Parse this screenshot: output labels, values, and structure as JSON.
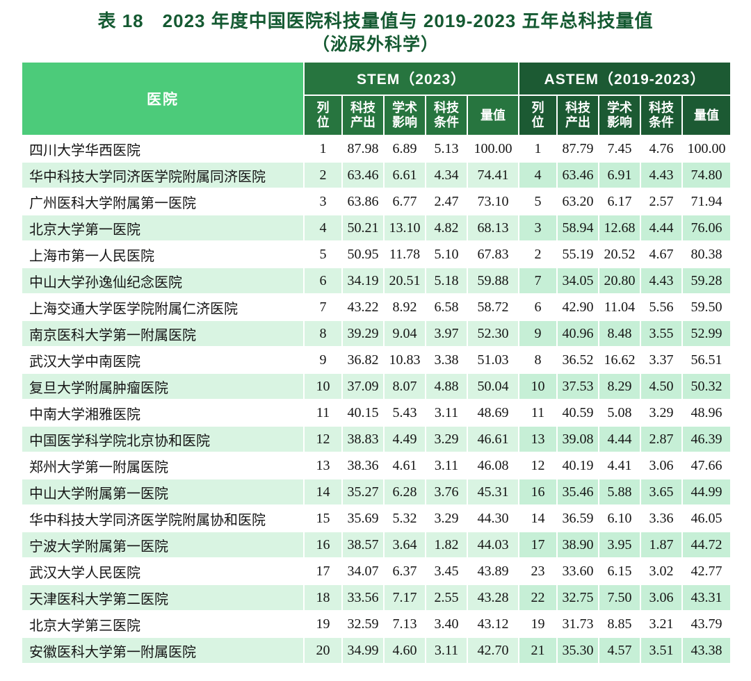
{
  "title": {
    "line1": "表 18　2023 年度中国医院科技量值与 2019-2023 五年总科技量值",
    "line2": "（泌尿外科学）"
  },
  "colors": {
    "title_text": "#155a32",
    "hospital_header_bg": "#4ccb7a",
    "stem_header_bg": "#27753f",
    "astem_header_bg": "#1c5a33",
    "row_stripe_light": "#d9f4e2",
    "row_stripe_dark": "#c6efd6",
    "header_text": "#ffffff",
    "body_text": "#151515"
  },
  "table": {
    "hospital_header": "医院",
    "groups": [
      {
        "label": "STEM（2023）",
        "columns": [
          "列位",
          "科技产出",
          "学术影响",
          "科技条件",
          "量值"
        ]
      },
      {
        "label": "ASTEM（2019-2023）",
        "columns": [
          "列位",
          "科技产出",
          "学术影响",
          "科技条件",
          "量值"
        ]
      }
    ],
    "rows": [
      {
        "hospital": "四川大学华西医院",
        "stem": [
          "1",
          "87.98",
          "6.89",
          "5.13",
          "100.00"
        ],
        "astem": [
          "1",
          "87.79",
          "7.45",
          "4.76",
          "100.00"
        ]
      },
      {
        "hospital": "华中科技大学同济医学院附属同济医院",
        "stem": [
          "2",
          "63.46",
          "6.61",
          "4.34",
          "74.41"
        ],
        "astem": [
          "4",
          "63.46",
          "6.91",
          "4.43",
          "74.80"
        ]
      },
      {
        "hospital": "广州医科大学附属第一医院",
        "stem": [
          "3",
          "63.86",
          "6.77",
          "2.47",
          "73.10"
        ],
        "astem": [
          "5",
          "63.20",
          "6.17",
          "2.57",
          "71.94"
        ]
      },
      {
        "hospital": "北京大学第一医院",
        "stem": [
          "4",
          "50.21",
          "13.10",
          "4.82",
          "68.13"
        ],
        "astem": [
          "3",
          "58.94",
          "12.68",
          "4.44",
          "76.06"
        ]
      },
      {
        "hospital": "上海市第一人民医院",
        "stem": [
          "5",
          "50.95",
          "11.78",
          "5.10",
          "67.83"
        ],
        "astem": [
          "2",
          "55.19",
          "20.52",
          "4.67",
          "80.38"
        ]
      },
      {
        "hospital": "中山大学孙逸仙纪念医院",
        "stem": [
          "6",
          "34.19",
          "20.51",
          "5.18",
          "59.88"
        ],
        "astem": [
          "7",
          "34.05",
          "20.80",
          "4.43",
          "59.28"
        ]
      },
      {
        "hospital": "上海交通大学医学院附属仁济医院",
        "stem": [
          "7",
          "43.22",
          "8.92",
          "6.58",
          "58.72"
        ],
        "astem": [
          "6",
          "42.90",
          "11.04",
          "5.56",
          "59.50"
        ]
      },
      {
        "hospital": "南京医科大学第一附属医院",
        "stem": [
          "8",
          "39.29",
          "9.04",
          "3.97",
          "52.30"
        ],
        "astem": [
          "9",
          "40.96",
          "8.48",
          "3.55",
          "52.99"
        ]
      },
      {
        "hospital": "武汉大学中南医院",
        "stem": [
          "9",
          "36.82",
          "10.83",
          "3.38",
          "51.03"
        ],
        "astem": [
          "8",
          "36.52",
          "16.62",
          "3.37",
          "56.51"
        ]
      },
      {
        "hospital": "复旦大学附属肿瘤医院",
        "stem": [
          "10",
          "37.09",
          "8.07",
          "4.88",
          "50.04"
        ],
        "astem": [
          "10",
          "37.53",
          "8.29",
          "4.50",
          "50.32"
        ]
      },
      {
        "hospital": "中南大学湘雅医院",
        "stem": [
          "11",
          "40.15",
          "5.43",
          "3.11",
          "48.69"
        ],
        "astem": [
          "11",
          "40.59",
          "5.08",
          "3.29",
          "48.96"
        ]
      },
      {
        "hospital": "中国医学科学院北京协和医院",
        "stem": [
          "12",
          "38.83",
          "4.49",
          "3.29",
          "46.61"
        ],
        "astem": [
          "13",
          "39.08",
          "4.44",
          "2.87",
          "46.39"
        ]
      },
      {
        "hospital": "郑州大学第一附属医院",
        "stem": [
          "13",
          "38.36",
          "4.61",
          "3.11",
          "46.08"
        ],
        "astem": [
          "12",
          "40.19",
          "4.41",
          "3.06",
          "47.66"
        ]
      },
      {
        "hospital": "中山大学附属第一医院",
        "stem": [
          "14",
          "35.27",
          "6.28",
          "3.76",
          "45.31"
        ],
        "astem": [
          "16",
          "35.46",
          "5.88",
          "3.65",
          "44.99"
        ]
      },
      {
        "hospital": "华中科技大学同济医学院附属协和医院",
        "stem": [
          "15",
          "35.69",
          "5.32",
          "3.29",
          "44.30"
        ],
        "astem": [
          "14",
          "36.59",
          "6.10",
          "3.36",
          "46.05"
        ]
      },
      {
        "hospital": "宁波大学附属第一医院",
        "stem": [
          "16",
          "38.57",
          "3.64",
          "1.82",
          "44.03"
        ],
        "astem": [
          "17",
          "38.90",
          "3.95",
          "1.87",
          "44.72"
        ]
      },
      {
        "hospital": "武汉大学人民医院",
        "stem": [
          "17",
          "34.07",
          "6.37",
          "3.45",
          "43.89"
        ],
        "astem": [
          "23",
          "33.60",
          "6.15",
          "3.02",
          "42.77"
        ]
      },
      {
        "hospital": "天津医科大学第二医院",
        "stem": [
          "18",
          "33.56",
          "7.17",
          "2.55",
          "43.28"
        ],
        "astem": [
          "22",
          "32.75",
          "7.50",
          "3.06",
          "43.31"
        ]
      },
      {
        "hospital": "北京大学第三医院",
        "stem": [
          "19",
          "32.59",
          "7.13",
          "3.40",
          "43.12"
        ],
        "astem": [
          "19",
          "31.73",
          "8.85",
          "3.21",
          "43.79"
        ]
      },
      {
        "hospital": "安徽医科大学第一附属医院",
        "stem": [
          "20",
          "34.99",
          "4.60",
          "3.11",
          "42.70"
        ],
        "astem": [
          "21",
          "35.30",
          "4.57",
          "3.51",
          "43.38"
        ]
      }
    ]
  }
}
